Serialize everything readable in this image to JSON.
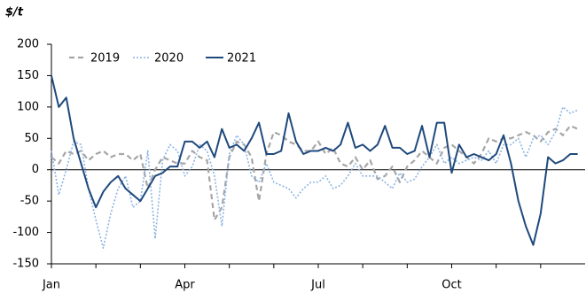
{
  "chart_data": {
    "type": "line",
    "y_axis_label": "$/t",
    "categories": [
      "Jan",
      null,
      null,
      null,
      null,
      null,
      null,
      null,
      null,
      null,
      null,
      null,
      null,
      null,
      null,
      null,
      null,
      null,
      "Apr",
      null,
      null,
      null,
      null,
      null,
      null,
      null,
      null,
      null,
      null,
      null,
      null,
      null,
      null,
      null,
      null,
      null,
      "Jul",
      null,
      null,
      null,
      null,
      null,
      null,
      null,
      null,
      null,
      null,
      null,
      null,
      null,
      null,
      null,
      null,
      null,
      "Oct",
      null,
      null,
      null,
      null,
      null,
      null,
      null,
      null,
      null,
      null,
      null,
      null,
      null,
      null,
      null,
      null,
      null
    ],
    "series": [
      {
        "name": "2019",
        "color": "#a6a6a6",
        "dash": "6,4",
        "width": 2.2,
        "values": [
          20,
          10,
          30,
          25,
          30,
          15,
          25,
          30,
          20,
          25,
          25,
          15,
          25,
          -30,
          0,
          20,
          15,
          10,
          10,
          30,
          20,
          15,
          -80,
          -60,
          20,
          45,
          40,
          20,
          -50,
          25,
          60,
          55,
          45,
          40,
          30,
          30,
          45,
          25,
          35,
          10,
          5,
          20,
          0,
          15,
          -15,
          -10,
          5,
          -20,
          5,
          15,
          30,
          20,
          10,
          35,
          40,
          30,
          20,
          10,
          25,
          50,
          45,
          50,
          50,
          55,
          60,
          55,
          45,
          60,
          65,
          55,
          70,
          65
        ]
      },
      {
        "name": "2020",
        "color": "#8db4e2",
        "dash": "2,2",
        "width": 1.6,
        "values": [
          30,
          -40,
          0,
          45,
          40,
          -30,
          -80,
          -125,
          -70,
          -30,
          -10,
          -60,
          -50,
          30,
          -110,
          15,
          40,
          30,
          -10,
          5,
          40,
          30,
          -10,
          -90,
          25,
          55,
          40,
          -10,
          -20,
          10,
          -20,
          -25,
          -30,
          -45,
          -30,
          -20,
          -20,
          -10,
          -30,
          -25,
          -10,
          10,
          -10,
          -10,
          -10,
          -20,
          -30,
          -5,
          -20,
          -15,
          5,
          20,
          40,
          10,
          20,
          10,
          15,
          20,
          15,
          30,
          10,
          40,
          40,
          50,
          20,
          50,
          55,
          40,
          60,
          100,
          90,
          95
        ]
      },
      {
        "name": "2021",
        "color": "#1f497d",
        "dash": "",
        "width": 2,
        "values": [
          150,
          100,
          115,
          50,
          10,
          -30,
          -60,
          -35,
          -20,
          -10,
          -30,
          -40,
          -50,
          -30,
          -10,
          -5,
          5,
          5,
          45,
          45,
          35,
          45,
          20,
          65,
          35,
          40,
          30,
          50,
          75,
          25,
          25,
          30,
          90,
          45,
          25,
          30,
          30,
          35,
          30,
          40,
          75,
          35,
          40,
          30,
          40,
          70,
          35,
          35,
          25,
          30,
          70,
          20,
          75,
          75,
          -5,
          40,
          20,
          25,
          20,
          15,
          25,
          55,
          10,
          -50,
          -90,
          -120,
          -70,
          20,
          10,
          15,
          25,
          25
        ]
      }
    ],
    "ylim": [
      -150,
      200
    ],
    "yticks": [
      -150,
      -100,
      -50,
      0,
      50,
      100,
      150,
      200
    ],
    "legend": "top-left",
    "grid": false
  }
}
